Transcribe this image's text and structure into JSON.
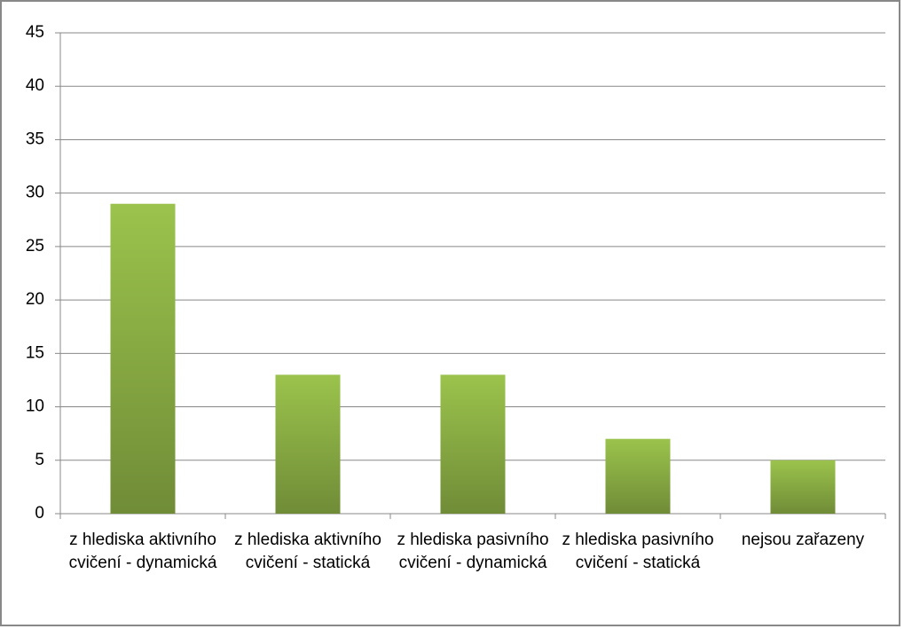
{
  "chart_data": {
    "type": "bar",
    "categories": [
      "z hlediska aktivního cvičení - dynamická",
      "z hlediska aktivního cvičení - statická",
      "z hlediska pasivního cvičení - dynamická",
      "z hlediska pasivního cvičení - statická",
      "nejsou zařazeny"
    ],
    "values": [
      29,
      13,
      13,
      7,
      5
    ],
    "color": "#9bc34c",
    "ylim": [
      0,
      45
    ],
    "yticks": [
      0,
      5,
      10,
      15,
      20,
      25,
      30,
      35,
      40,
      45
    ],
    "grid": true
  }
}
